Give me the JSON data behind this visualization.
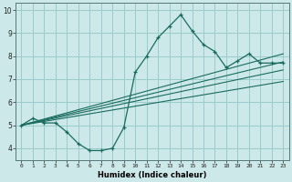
{
  "x": [
    0,
    1,
    2,
    3,
    4,
    5,
    6,
    7,
    8,
    9,
    10,
    11,
    12,
    13,
    14,
    15,
    16,
    17,
    18,
    19,
    20,
    21,
    22,
    23
  ],
  "y_main": [
    5.0,
    5.3,
    5.1,
    5.1,
    4.7,
    4.2,
    3.9,
    3.9,
    4.0,
    4.9,
    7.3,
    8.0,
    8.8,
    9.3,
    9.8,
    9.1,
    8.5,
    8.2,
    7.5,
    7.8,
    8.1,
    7.7,
    7.7,
    7.7
  ],
  "trend_lines": [
    {
      "x0": 0,
      "y0": 5.0,
      "x1": 23,
      "y1": 6.9
    },
    {
      "x0": 0,
      "y0": 5.0,
      "x1": 23,
      "y1": 7.4
    },
    {
      "x0": 0,
      "y0": 5.0,
      "x1": 23,
      "y1": 7.75
    },
    {
      "x0": 0,
      "y0": 5.0,
      "x1": 23,
      "y1": 8.1
    }
  ],
  "bg_color": "#cce8e8",
  "line_color": "#1a6b5e",
  "grid_color": "#99cccc",
  "xlabel": "Humidex (Indice chaleur)",
  "xlim": [
    -0.5,
    23.5
  ],
  "ylim": [
    3.5,
    10.3
  ],
  "yticks": [
    4,
    5,
    6,
    7,
    8,
    9,
    10
  ],
  "xticks": [
    0,
    1,
    2,
    3,
    4,
    5,
    6,
    7,
    8,
    9,
    10,
    11,
    12,
    13,
    14,
    15,
    16,
    17,
    18,
    19,
    20,
    21,
    22,
    23
  ],
  "xtick_labels": [
    "0",
    "1",
    "2",
    "3",
    "4",
    "5",
    "6",
    "7",
    "8",
    "9",
    "10",
    "11",
    "12",
    "13",
    "14",
    "15",
    "16",
    "17",
    "18",
    "19",
    "20",
    "21",
    "22",
    "23"
  ]
}
